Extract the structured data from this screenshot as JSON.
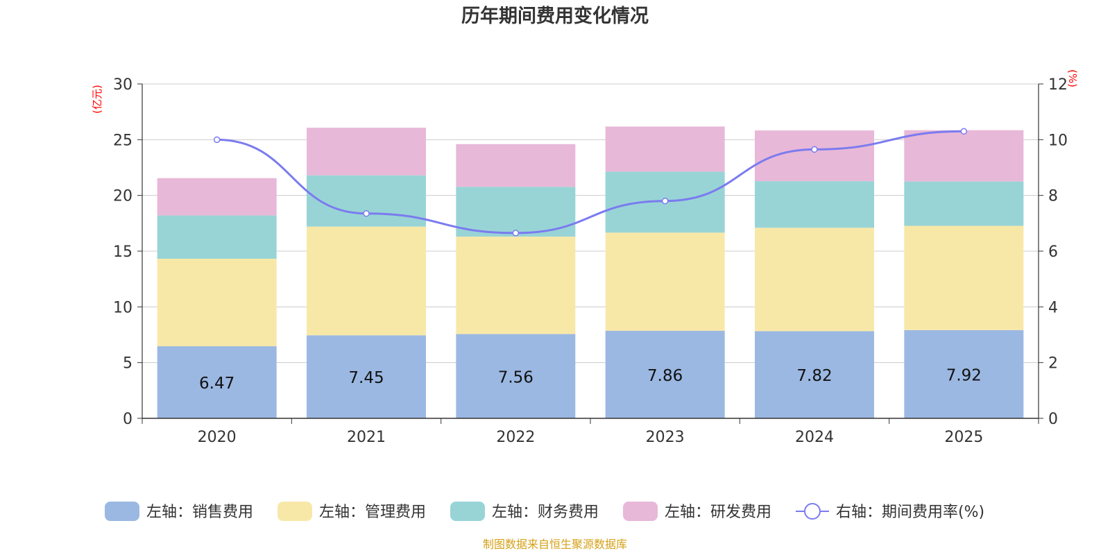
{
  "chart_data": {
    "type": "bar",
    "stacked": true,
    "title": "历年期间费用变化情况",
    "categories": [
      "2020",
      "2021",
      "2022",
      "2023",
      "2024",
      "2025"
    ],
    "left_axis": {
      "unit": "(亿元)",
      "ylim": [
        0,
        30
      ],
      "ticks": [
        "0",
        "5",
        "10",
        "15",
        "20",
        "25",
        "30"
      ]
    },
    "right_axis": {
      "unit": "(%)",
      "ylim": [
        0,
        12
      ],
      "ticks": [
        "0",
        "2",
        "4",
        "6",
        "8",
        "10",
        "12"
      ]
    },
    "series": [
      {
        "name": "左轴：销售费用",
        "kind": "bar",
        "axis": "left",
        "color": "#9bb8e2",
        "values": [
          6.47,
          7.45,
          7.56,
          7.86,
          7.82,
          7.92
        ],
        "labels": [
          "6.47",
          "7.45",
          "7.56",
          "7.86",
          "7.82",
          "7.92"
        ]
      },
      {
        "name": "左轴：管理费用",
        "kind": "bar",
        "axis": "left",
        "color": "#f8e8a8",
        "values": [
          7.85,
          9.75,
          8.74,
          8.8,
          9.28,
          9.35
        ]
      },
      {
        "name": "左轴：财务费用",
        "kind": "bar",
        "axis": "left",
        "color": "#98d4d6",
        "values": [
          3.88,
          4.6,
          4.47,
          5.47,
          4.18,
          3.98
        ]
      },
      {
        "name": "左轴：研发费用",
        "kind": "bar",
        "axis": "left",
        "color": "#e8b8d8",
        "values": [
          3.35,
          4.27,
          3.83,
          4.05,
          4.55,
          4.6
        ]
      },
      {
        "name": "右轴：期间费用率(%)",
        "kind": "line",
        "axis": "right",
        "color": "#7b7bef",
        "values": [
          10.0,
          7.35,
          6.65,
          7.8,
          9.65,
          10.3
        ]
      }
    ],
    "grid": true,
    "legend_position": "bottom"
  },
  "source_note": "制图数据来自恒生聚源数据库"
}
